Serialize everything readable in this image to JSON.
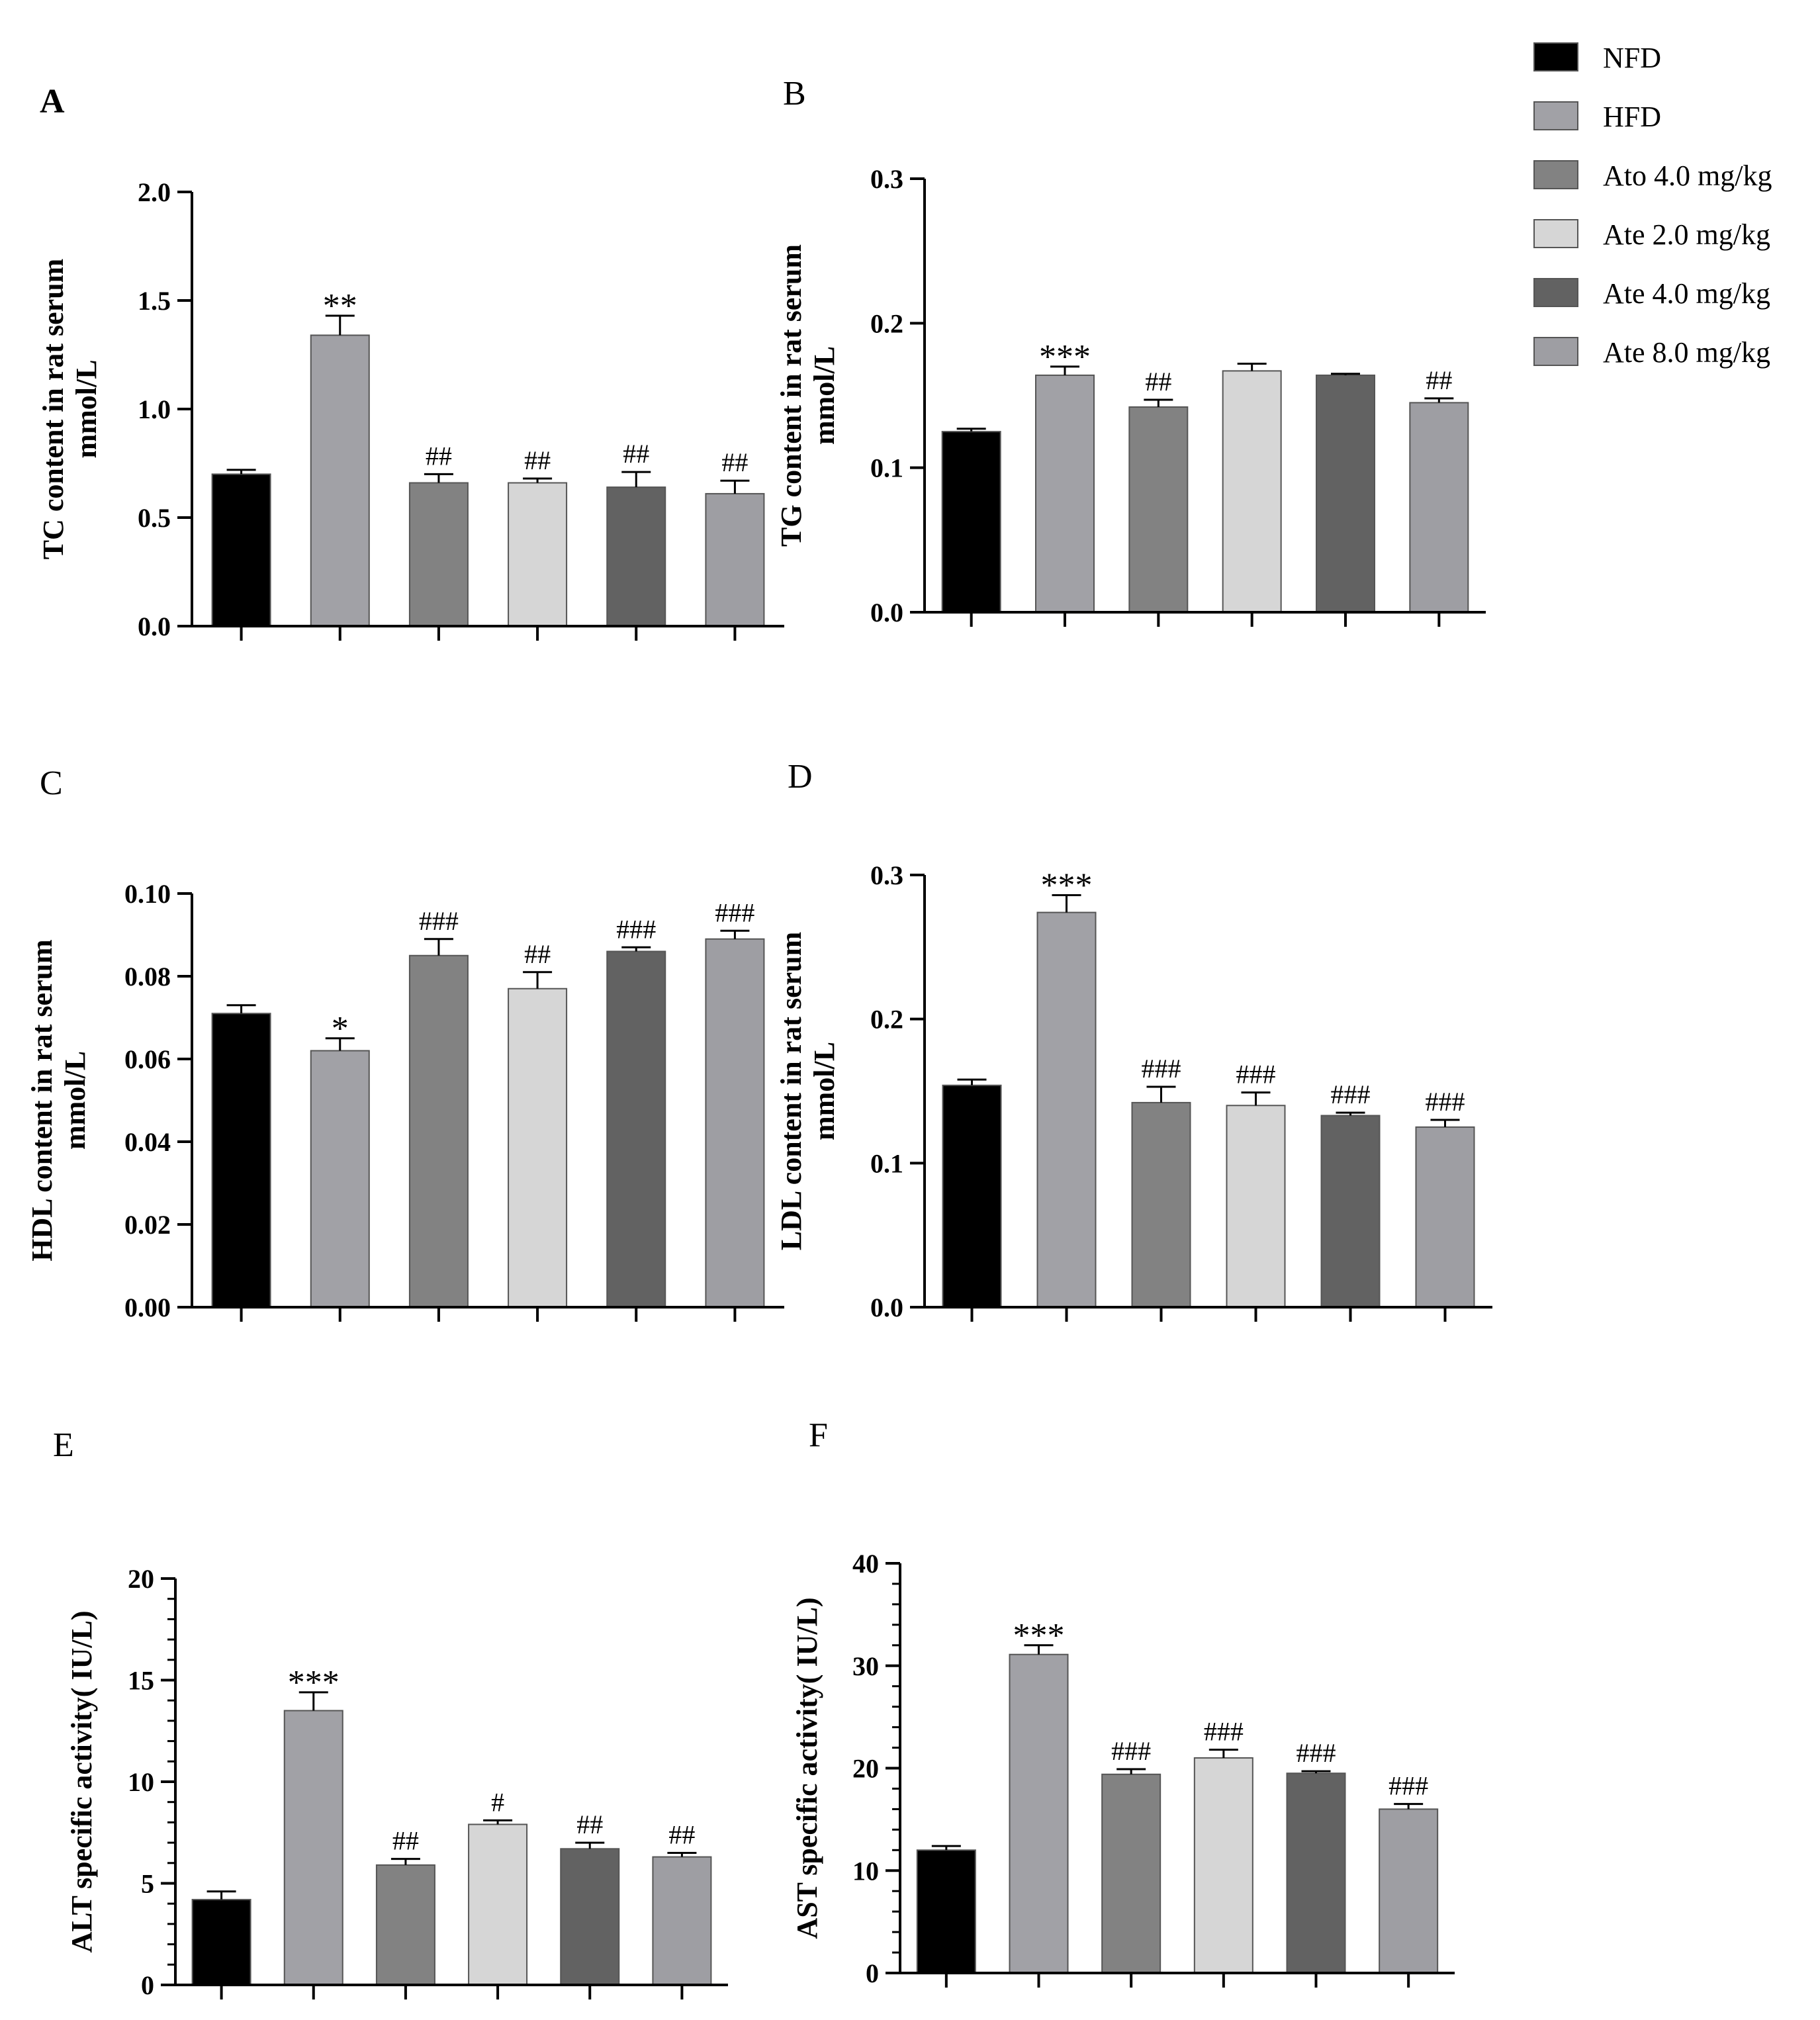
{
  "legend": {
    "entries": [
      {
        "label": "NFD",
        "color": "#000000"
      },
      {
        "label": "HFD",
        "color": "#a1a1a6"
      },
      {
        "label": "Ato 4.0 mg/kg",
        "color": "#828282"
      },
      {
        "label": "Ate 2.0 mg/kg",
        "color": "#d6d6d6"
      },
      {
        "label": "Ate 4.0 mg/kg",
        "color": "#626262"
      },
      {
        "label": "Ate 8.0 mg/kg",
        "color": "#9e9ea3"
      }
    ]
  },
  "chart_data": [
    {
      "panel": "A",
      "type": "bar",
      "title": "",
      "ylabel_lines": [
        "TC content in rat serum",
        "mmol/L"
      ],
      "xlabel": "",
      "categories": [
        "NFD",
        "HFD",
        "Ato 4.0 mg/kg",
        "Ate 2.0 mg/kg",
        "Ate 4.0 mg/kg",
        "Ate 8.0 mg/kg"
      ],
      "values": [
        0.7,
        1.34,
        0.66,
        0.66,
        0.64,
        0.61
      ],
      "errors": [
        0.02,
        0.09,
        0.04,
        0.02,
        0.07,
        0.06
      ],
      "annotations": [
        "",
        "**",
        "##",
        "##",
        "##",
        "##"
      ],
      "ylim": [
        0,
        2.0
      ],
      "yticks": [
        0.0,
        0.5,
        1.0,
        1.5,
        2.0
      ],
      "ytick_labels": [
        "0.0",
        "0.5",
        "1.0",
        "1.5",
        "2.0"
      ]
    },
    {
      "panel": "B",
      "type": "bar",
      "title": "",
      "ylabel_lines": [
        "TG content in rat serum",
        "mmol/L"
      ],
      "xlabel": "",
      "categories": [
        "NFD",
        "HFD",
        "Ato 4.0 mg/kg",
        "Ate 2.0 mg/kg",
        "Ate 4.0 mg/kg",
        "Ate 8.0 mg/kg"
      ],
      "values": [
        0.125,
        0.164,
        0.142,
        0.167,
        0.164,
        0.145
      ],
      "errors": [
        0.002,
        0.006,
        0.005,
        0.005,
        0.001,
        0.003
      ],
      "annotations": [
        "",
        "***",
        "##",
        "",
        "",
        "##"
      ],
      "ylim": [
        0,
        0.3
      ],
      "yticks": [
        0.0,
        0.1,
        0.2,
        0.3
      ],
      "ytick_labels": [
        "0.0",
        "0.1",
        "0.2",
        "0.3"
      ]
    },
    {
      "panel": "C",
      "type": "bar",
      "title": "",
      "ylabel_lines": [
        "HDL content in rat serum",
        "mmol/L"
      ],
      "xlabel": "",
      "categories": [
        "NFD",
        "HFD",
        "Ato 4.0 mg/kg",
        "Ate 2.0 mg/kg",
        "Ate 4.0 mg/kg",
        "Ate 8.0 mg/kg"
      ],
      "values": [
        0.071,
        0.062,
        0.085,
        0.077,
        0.086,
        0.089
      ],
      "errors": [
        0.002,
        0.003,
        0.004,
        0.004,
        0.001,
        0.002
      ],
      "annotations": [
        "",
        "*",
        "###",
        "##",
        "###",
        "###"
      ],
      "ylim": [
        0,
        0.1
      ],
      "yticks": [
        0.0,
        0.02,
        0.04,
        0.06,
        0.08,
        0.1
      ],
      "ytick_labels": [
        "0.00",
        "0.02",
        "0.04",
        "0.06",
        "0.08",
        "0.10"
      ]
    },
    {
      "panel": "D",
      "type": "bar",
      "title": "",
      "ylabel_lines": [
        "LDL content in rat serum",
        "mmol/L"
      ],
      "xlabel": "",
      "categories": [
        "NFD",
        "HFD",
        "Ato 4.0 mg/kg",
        "Ate 2.0 mg/kg",
        "Ate 4.0 mg/kg",
        "Ate 8.0 mg/kg"
      ],
      "values": [
        0.154,
        0.274,
        0.142,
        0.14,
        0.133,
        0.125
      ],
      "errors": [
        0.004,
        0.012,
        0.011,
        0.009,
        0.002,
        0.005
      ],
      "annotations": [
        "",
        "***",
        "###",
        "###",
        "###",
        "###"
      ],
      "ylim": [
        0,
        0.3
      ],
      "yticks": [
        0.0,
        0.1,
        0.2,
        0.3
      ],
      "ytick_labels": [
        "0.0",
        "0.1",
        "0.2",
        "0.3"
      ]
    },
    {
      "panel": "E",
      "type": "bar",
      "title": "",
      "ylabel_lines": [
        "ALT specific activity( IU/L)"
      ],
      "xlabel": "",
      "categories": [
        "NFD",
        "HFD",
        "Ato 4.0 mg/kg",
        "Ate 2.0 mg/kg",
        "Ate 4.0 mg/kg",
        "Ate 8.0 mg/kg"
      ],
      "values": [
        4.2,
        13.5,
        5.9,
        7.9,
        6.7,
        6.3
      ],
      "errors": [
        0.4,
        0.9,
        0.3,
        0.2,
        0.3,
        0.2
      ],
      "annotations": [
        "",
        "***",
        "##",
        "#",
        "##",
        "##"
      ],
      "ylim": [
        0,
        20
      ],
      "yticks": [
        0,
        5,
        10,
        15,
        20
      ],
      "ytick_labels": [
        "0",
        "5",
        "10",
        "15",
        "20"
      ]
    },
    {
      "panel": "F",
      "type": "bar",
      "title": "",
      "ylabel_lines": [
        "AST specific activity( IU/L)"
      ],
      "xlabel": "",
      "categories": [
        "NFD",
        "HFD",
        "Ato 4.0 mg/kg",
        "Ate 2.0 mg/kg",
        "Ate 4.0 mg/kg",
        "Ate 8.0 mg/kg"
      ],
      "values": [
        12.0,
        31.1,
        19.4,
        21.0,
        19.5,
        16.0
      ],
      "errors": [
        0.4,
        0.9,
        0.5,
        0.8,
        0.2,
        0.5
      ],
      "annotations": [
        "",
        "***",
        "###",
        "###",
        "###",
        "###"
      ],
      "ylim": [
        0,
        40
      ],
      "yticks": [
        0,
        10,
        20,
        30,
        40
      ],
      "ytick_labels": [
        "0",
        "10",
        "20",
        "30",
        "40"
      ]
    }
  ]
}
